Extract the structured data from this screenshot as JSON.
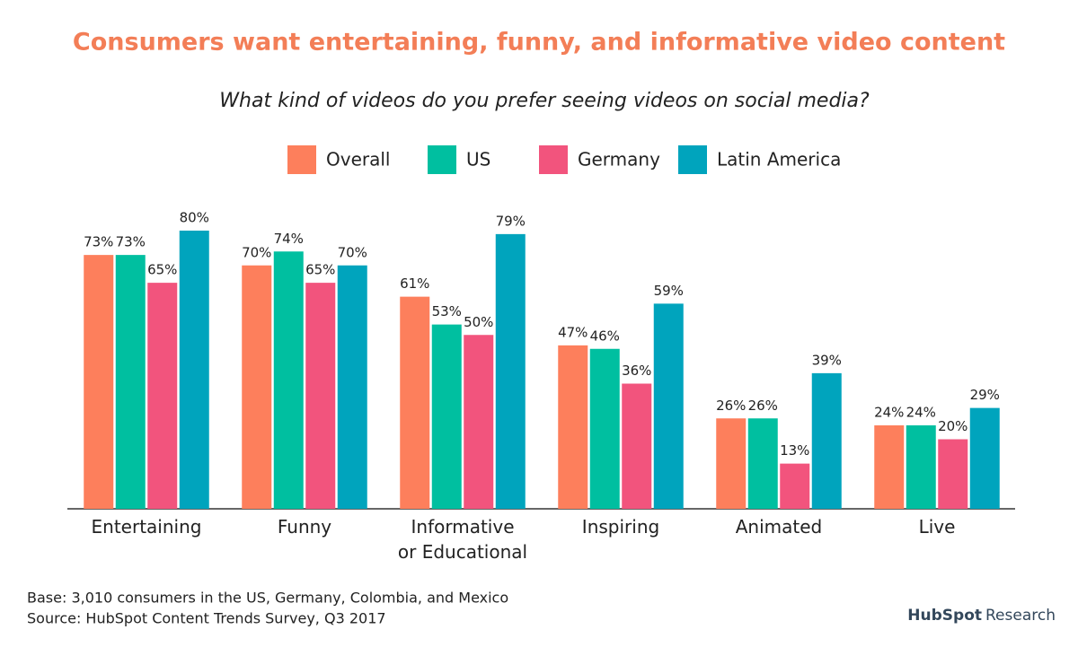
{
  "chart_data": {
    "type": "bar",
    "title": "Consumers want entertaining, funny, and informative video content",
    "subtitle": "What kind of videos do you prefer seeing videos on social media?",
    "categories": [
      "Entertaining",
      "Funny",
      "Informative\nor Educational",
      "Inspiring",
      "Animated",
      "Live"
    ],
    "series": [
      {
        "name": "Overall",
        "color": "#fd7f5c",
        "values": [
          73,
          70,
          61,
          47,
          26,
          24
        ],
        "value_labels": [
          "73%",
          "70%",
          "61%",
          "47%",
          "26%",
          "24%"
        ]
      },
      {
        "name": "US",
        "color": "#00bfa0",
        "values": [
          73,
          74,
          53,
          46,
          26,
          24
        ],
        "value_labels": [
          "73%",
          "74%",
          "53%",
          "46%",
          "26%",
          "24%"
        ]
      },
      {
        "name": "Germany",
        "color": "#f2547d",
        "values": [
          65,
          65,
          50,
          36,
          13,
          20
        ],
        "value_labels": [
          "65%",
          "65%",
          "50%",
          "36%",
          "13%",
          "20%"
        ]
      },
      {
        "name": "Latin America",
        "color": "#00a4bd",
        "values": [
          80,
          70,
          79,
          59,
          39,
          29
        ],
        "value_labels": [
          "80%",
          "70%",
          "79%",
          "59%",
          "39%",
          "29%"
        ]
      }
    ],
    "footnotes": [
      "Base: 3,010 consumers in the US, Germany, Colombia, and Mexico",
      "Source: HubSpot Content Trends Survey, Q3 2017"
    ],
    "logo_text": "HubSpot",
    "logo_subtext": "Research"
  }
}
